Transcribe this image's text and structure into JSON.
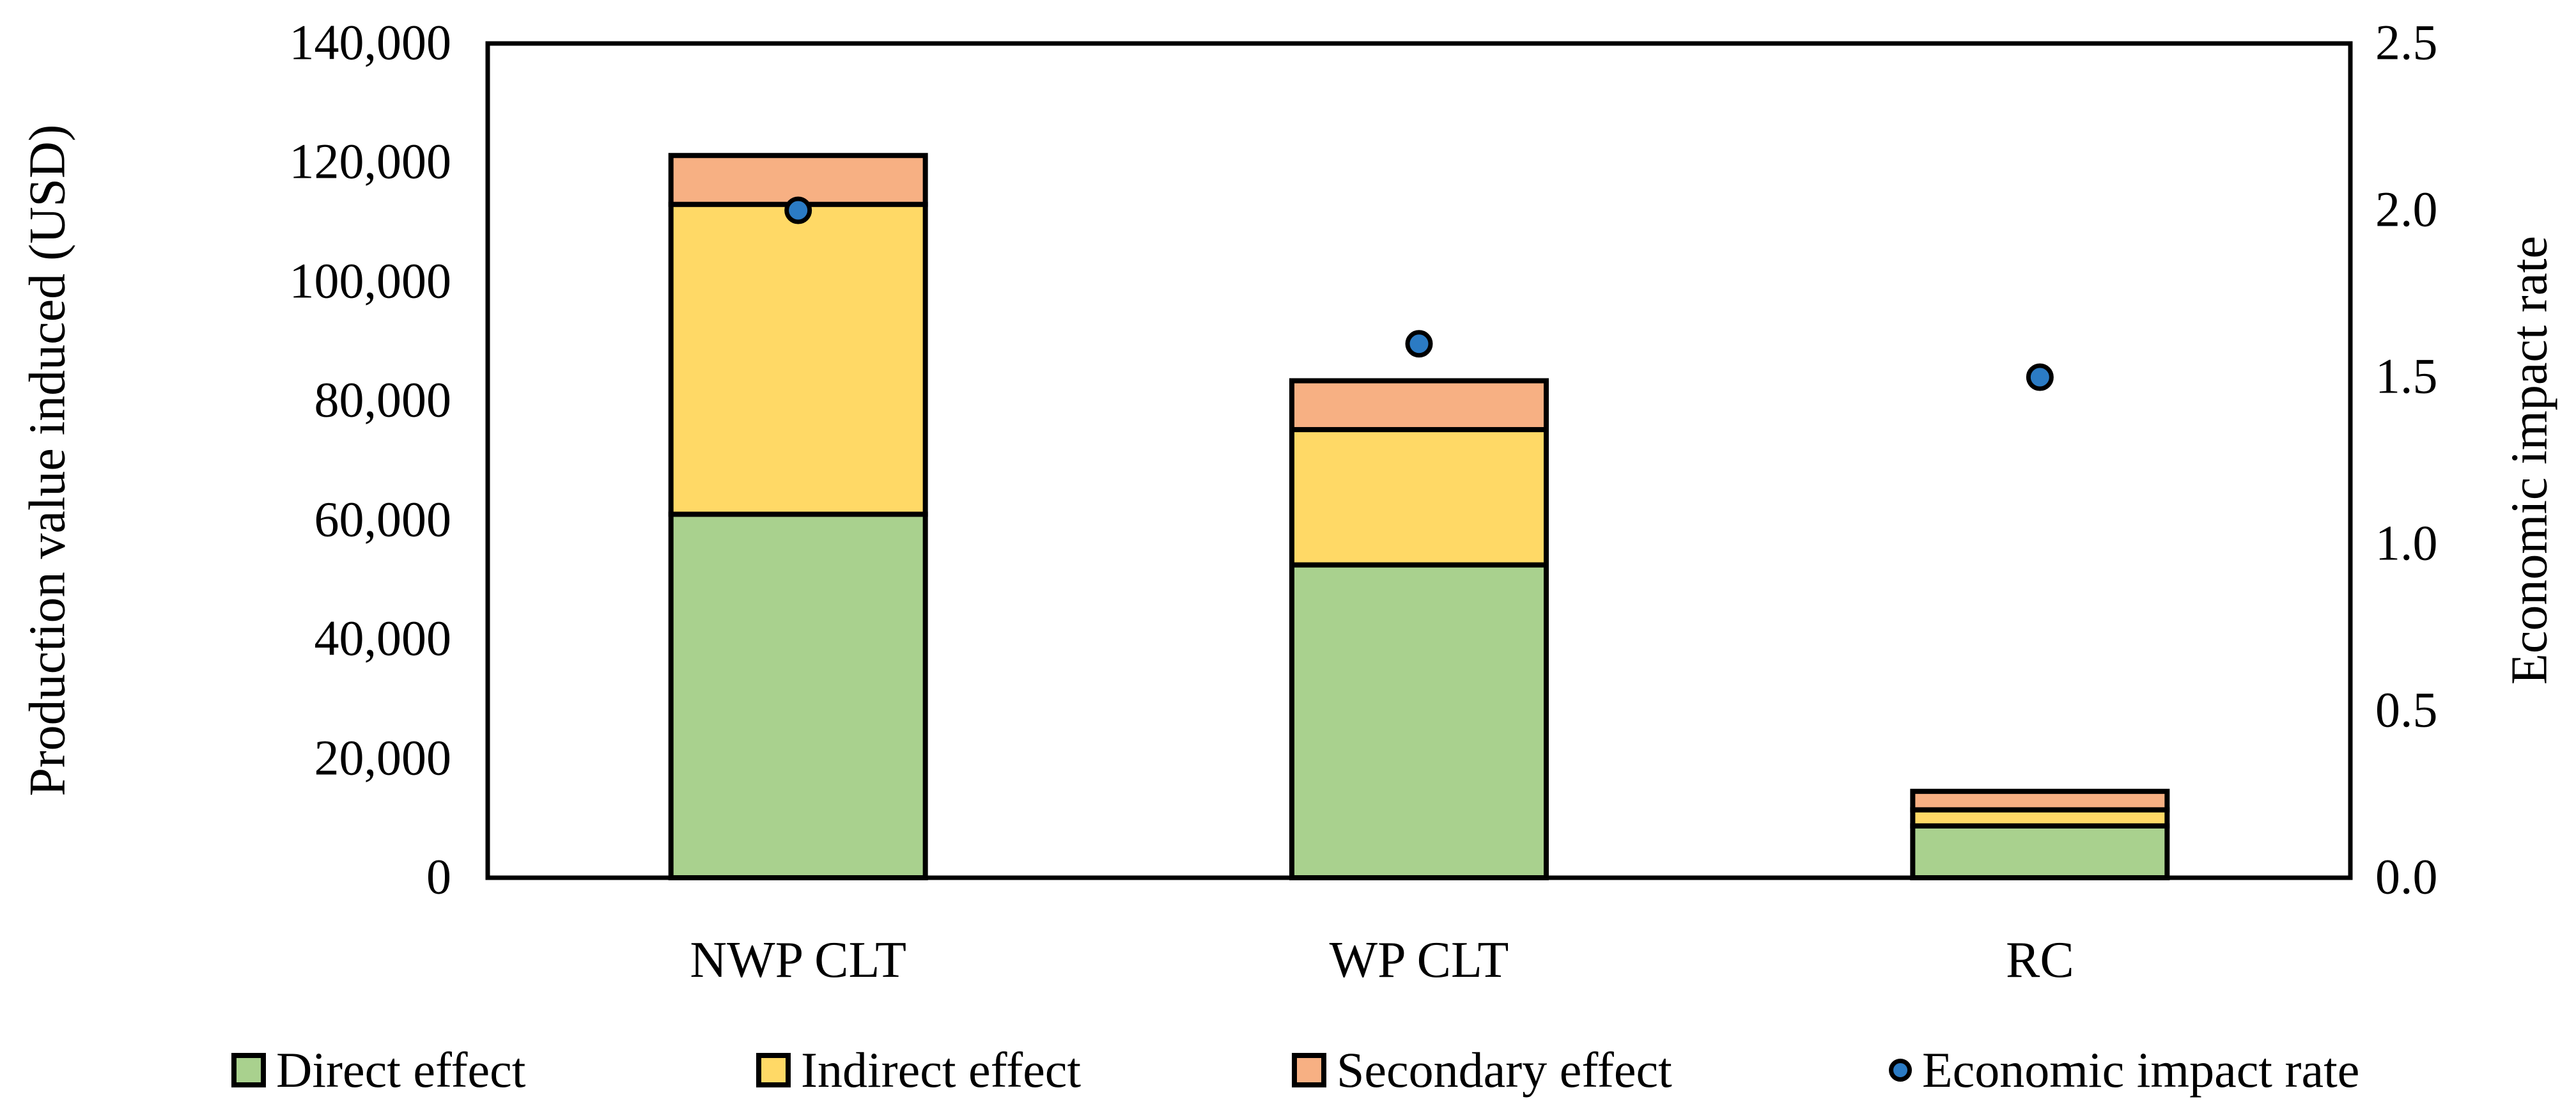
{
  "chart_data": {
    "type": "bar",
    "subtype": "stacked-bar-with-secondary-scatter",
    "categories": [
      "NWP CLT",
      "WP CLT",
      "RC"
    ],
    "series": [
      {
        "name": "Direct effect",
        "type": "bar-stack",
        "axis": "left",
        "color": "#A9D18E",
        "values": [
          61000,
          52500,
          8700
        ]
      },
      {
        "name": "Indirect effect",
        "type": "bar-stack",
        "axis": "left",
        "color": "#FFD966",
        "values": [
          52000,
          22700,
          2700
        ]
      },
      {
        "name": "Secondary effect",
        "type": "bar-stack",
        "axis": "left",
        "color": "#F7B083",
        "values": [
          8200,
          8200,
          3100
        ]
      },
      {
        "name": "Economic impact rate",
        "type": "scatter",
        "axis": "right",
        "color": "#2B7BC4",
        "values": [
          2.0,
          1.6,
          1.5
        ]
      }
    ],
    "stack_totals": [
      121200,
      83400,
      14500
    ],
    "left_axis": {
      "label": "Production value induced (USD)",
      "min": 0,
      "max": 140000,
      "tick_step": 20000,
      "ticks": [
        "140,000",
        "120,000",
        "100,000",
        "80,000",
        "60,000",
        "40,000",
        "20,000",
        "0"
      ]
    },
    "right_axis": {
      "label": "Economic impact rate",
      "min": 0.0,
      "max": 2.5,
      "tick_step": 0.5,
      "ticks": [
        "2.5",
        "2.0",
        "1.5",
        "1.0",
        "0.5",
        "0.0"
      ]
    },
    "grid": false,
    "legend_position": "bottom",
    "plot_border_color": "#000000",
    "background_color": "#ffffff"
  }
}
